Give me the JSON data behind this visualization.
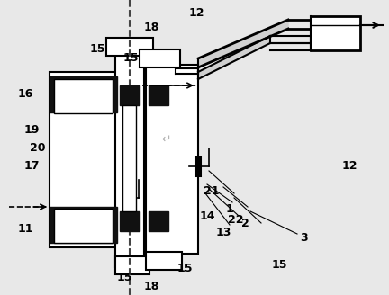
{
  "bg_color": "#e8e8e8",
  "line_color": "#000000",
  "dark_fill": "#111111",
  "light_fill": "#ffffff",
  "label_color": "#000000",
  "dashed_color": "#444444",
  "figsize": [
    4.32,
    3.28
  ],
  "dpi": 100
}
